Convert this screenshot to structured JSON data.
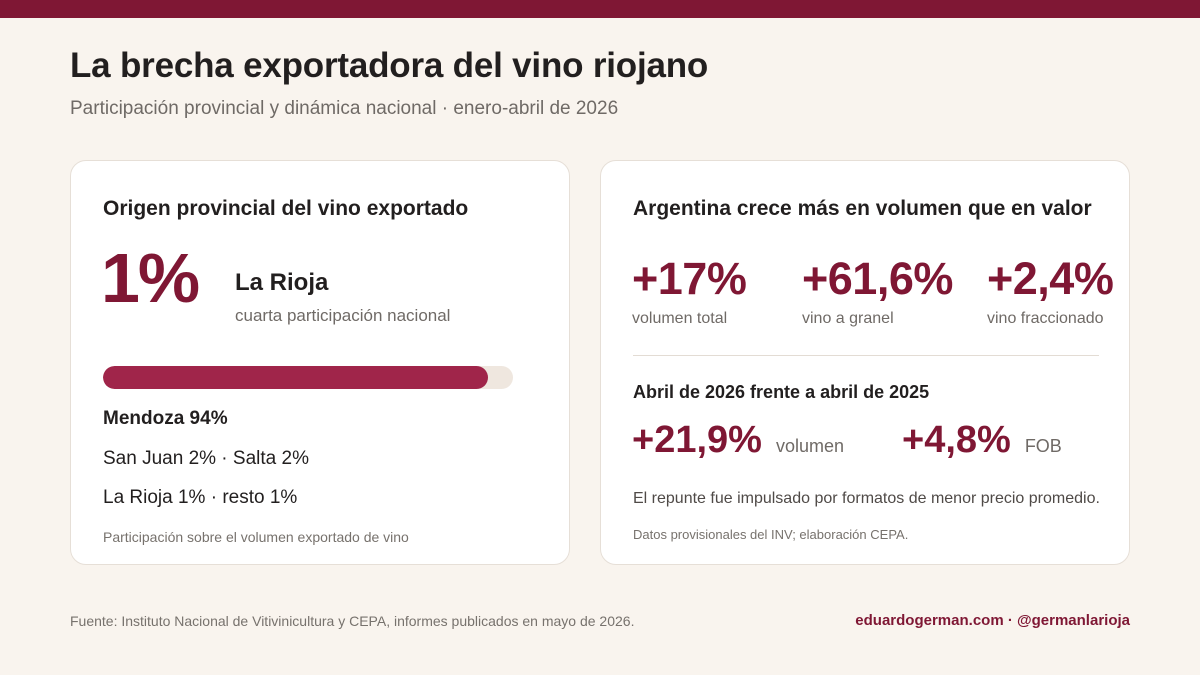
{
  "header": {
    "title": "La brecha exportadora del vino riojano",
    "subtitle": "Participación provincial y dinámica nacional · enero-abril de 2026"
  },
  "left_card": {
    "title": "Origen provincial del vino exportado",
    "big_value": "1%",
    "province": "La Rioja",
    "province_note": "cuarta participación nacional",
    "bar": {
      "percent": 94,
      "color": "#a0254a"
    },
    "main_share": "Mendoza 94%",
    "share_line_1": "San Juan 2% · Salta 2%",
    "share_line_2": "La Rioja 1% · resto 1%",
    "note": "Participación sobre el volumen exportado de vino"
  },
  "right_card": {
    "title": "Argentina crece más en volumen que en valor",
    "stats": [
      {
        "value": "+17%",
        "label": "volumen total"
      },
      {
        "value": "+61,6%",
        "label": "vino a granel"
      },
      {
        "value": "+2,4%",
        "label": "vino fraccionado"
      }
    ],
    "comparison_title": "Abril de 2026 frente a abril de 2025",
    "comparison": [
      {
        "value": "+21,9%",
        "label": "volumen"
      },
      {
        "value": "+4,8%",
        "label": "FOB"
      }
    ],
    "note": "El repunte fue impulsado por formatos de menor precio promedio.",
    "source": "Datos provisionales del INV; elaboración CEPA."
  },
  "footer": {
    "source": "Fuente: Instituto Nacional de Vitivinicultura y CEPA, informes publicados en mayo de 2026.",
    "credit": "eduardogerman.com · @germanlarioja"
  },
  "colors": {
    "accent": "#7f1734",
    "background": "#f9f4ee"
  }
}
